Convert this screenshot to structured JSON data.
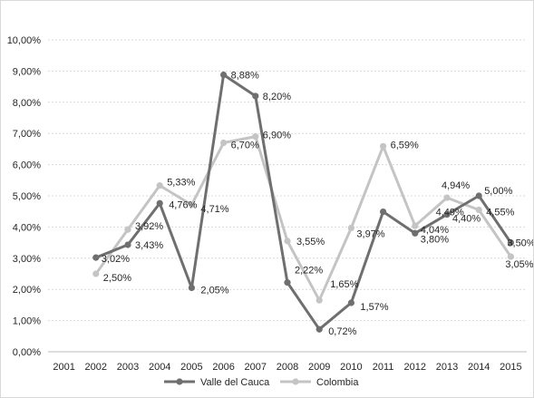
{
  "chart_data": {
    "type": "line",
    "title": "",
    "xlabel": "",
    "ylabel": "",
    "categories": [
      "2001",
      "2002",
      "2003",
      "2004",
      "2005",
      "2006",
      "2007",
      "2008",
      "2009",
      "2010",
      "2011",
      "2012",
      "2013",
      "2014",
      "2015"
    ],
    "y_ticks": [
      "0,00%",
      "1,00%",
      "2,00%",
      "3,00%",
      "4,00%",
      "5,00%",
      "6,00%",
      "7,00%",
      "8,00%",
      "9,00%",
      "10,00%"
    ],
    "ylim": [
      0,
      10
    ],
    "grid": true,
    "legend_position": "bottom",
    "series": [
      {
        "name": "Valle del Cauca",
        "color": "#6f6f6f",
        "values": [
          null,
          3.02,
          3.43,
          4.76,
          2.05,
          8.88,
          8.2,
          2.22,
          0.72,
          1.57,
          4.49,
          3.8,
          4.4,
          5.0,
          3.5
        ],
        "labels": [
          "",
          "3,02%",
          "3,43%",
          "4,76%",
          "2,05%",
          "8,88%",
          "8,20%",
          "",
          "0,72%",
          "1,57%",
          "",
          "3,80%",
          "4,40%",
          "5,00%",
          "3,50%"
        ]
      },
      {
        "name": "Colombia",
        "color": "#c4c4c4",
        "values": [
          null,
          2.5,
          3.92,
          5.33,
          4.71,
          6.7,
          6.9,
          3.55,
          1.65,
          3.97,
          6.59,
          4.04,
          4.94,
          4.55,
          3.05
        ],
        "labels": [
          "",
          "2,50%",
          "3,92%",
          "5,33%",
          "4,71%",
          "6,70%",
          "6,90%",
          "3,55%",
          "1,65%",
          "3,97%",
          "6,59%",
          "4,04%",
          "4,94%",
          "4,55%",
          "3,05%"
        ]
      }
    ],
    "extra_labels": [
      "4,49%",
      "2,22%"
    ]
  }
}
